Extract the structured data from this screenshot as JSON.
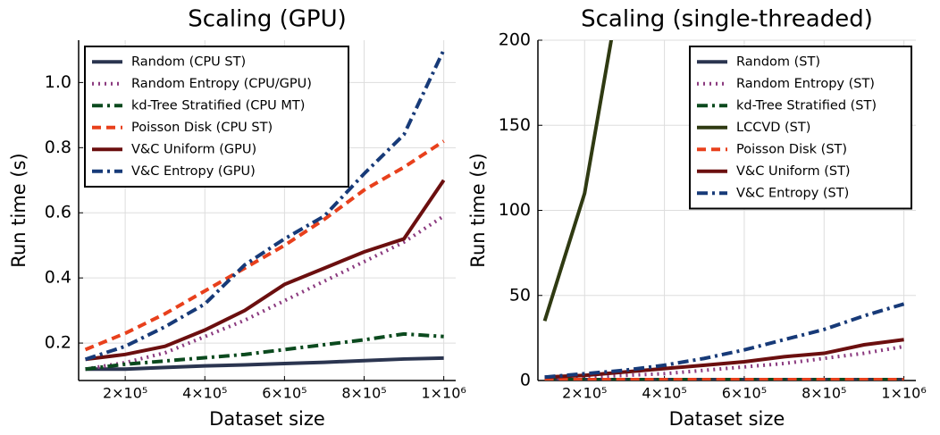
{
  "chart_data": [
    {
      "type": "line",
      "title": "Scaling (GPU)",
      "x_label": "Dataset size",
      "y_label": "Run time (s)",
      "x": [
        100000,
        200000,
        300000,
        400000,
        500000,
        600000,
        700000,
        800000,
        900000,
        1000000
      ],
      "xlim": [
        83000,
        1030000
      ],
      "xticks": [
        {
          "value": 200000,
          "label": "2×10⁵"
        },
        {
          "value": 400000,
          "label": "4×10⁵"
        },
        {
          "value": 600000,
          "label": "6×10⁵"
        },
        {
          "value": 800000,
          "label": "8×10⁵"
        },
        {
          "value": 1000000,
          "label": "1×10⁶"
        }
      ],
      "ylim": [
        0.085,
        1.13
      ],
      "yticks": [
        0.2,
        0.4,
        0.6,
        0.8,
        1.0
      ],
      "grid": true,
      "legend": "upper left",
      "series": [
        {
          "name": "Random (CPU ST)",
          "color": "#2b3550",
          "style": "solid",
          "values": [
            0.12,
            0.12,
            0.125,
            0.13,
            0.133,
            0.137,
            0.141,
            0.146,
            0.151,
            0.154
          ]
        },
        {
          "name": "Random Entropy (CPU/GPU)",
          "color": "#8b3a7f",
          "style": "dot",
          "values": [
            0.12,
            0.14,
            0.17,
            0.22,
            0.27,
            0.33,
            0.39,
            0.45,
            0.51,
            0.59
          ]
        },
        {
          "name": "kd-Tree Stratified (CPU MT)",
          "color": "#0b4a1e",
          "style": "dashdot",
          "values": [
            0.12,
            0.135,
            0.145,
            0.155,
            0.165,
            0.18,
            0.195,
            0.21,
            0.228,
            0.22
          ]
        },
        {
          "name": "Poisson Disk (CPU ST)",
          "color": "#e8401c",
          "style": "dash",
          "values": [
            0.18,
            0.23,
            0.29,
            0.36,
            0.43,
            0.5,
            0.58,
            0.67,
            0.74,
            0.82
          ]
        },
        {
          "name": "V&C Uniform (GPU)",
          "color": "#6b0f0f",
          "style": "solid",
          "values": [
            0.15,
            0.165,
            0.19,
            0.24,
            0.3,
            0.38,
            0.43,
            0.48,
            0.52,
            0.7
          ]
        },
        {
          "name": "V&C Entropy (GPU)",
          "color": "#173a78",
          "style": "dashdot",
          "values": [
            0.15,
            0.19,
            0.25,
            0.32,
            0.44,
            0.52,
            0.59,
            0.72,
            0.84,
            1.1
          ]
        }
      ]
    },
    {
      "type": "line",
      "title": "Scaling (single-threaded)",
      "x_label": "Dataset size",
      "y_label": "Run time (s)",
      "x": [
        100000,
        200000,
        300000,
        400000,
        500000,
        600000,
        700000,
        800000,
        900000,
        1000000
      ],
      "xlim": [
        83000,
        1030000
      ],
      "xticks": [
        {
          "value": 200000,
          "label": "2×10⁵"
        },
        {
          "value": 400000,
          "label": "4×10⁵"
        },
        {
          "value": 600000,
          "label": "6×10⁵"
        },
        {
          "value": 800000,
          "label": "8×10⁵"
        },
        {
          "value": 1000000,
          "label": "1×10⁶"
        }
      ],
      "ylim": [
        0,
        200
      ],
      "yticks": [
        0,
        50,
        100,
        150,
        200
      ],
      "grid": true,
      "legend": "upper right",
      "series": [
        {
          "name": "Random (ST)",
          "color": "#2b3550",
          "style": "solid",
          "values": [
            0.5,
            0.5,
            0.5,
            0.5,
            0.5,
            0.5,
            0.5,
            0.5,
            0.5,
            0.5
          ]
        },
        {
          "name": "Random Entropy (ST)",
          "color": "#8b3a7f",
          "style": "dot",
          "values": [
            1,
            2,
            3,
            4,
            6,
            8,
            10,
            13,
            16,
            20
          ]
        },
        {
          "name": "kd-Tree Stratified (ST)",
          "color": "#0b4a1e",
          "style": "dashdot",
          "values": [
            0.5,
            0.5,
            0.5,
            0.5,
            0.5,
            0.5,
            0.5,
            0.5,
            0.5,
            0.5
          ]
        },
        {
          "name": "LCCVD (ST)",
          "color": "#2f3a12",
          "style": "solid",
          "values": [
            35,
            110,
            245,
            null,
            null,
            null,
            null,
            null,
            null,
            null
          ]
        },
        {
          "name": "Poisson Disk (ST)",
          "color": "#e8401c",
          "style": "dash",
          "values": [
            0.5,
            0.5,
            0.5,
            0.5,
            0.5,
            0.5,
            0.5,
            0.5,
            0.5,
            0.5
          ]
        },
        {
          "name": "V&C Uniform (ST)",
          "color": "#6b0f0f",
          "style": "solid",
          "values": [
            2,
            3,
            5,
            7,
            9,
            11,
            14,
            16,
            21,
            24
          ]
        },
        {
          "name": "V&C Entropy (ST)",
          "color": "#173a78",
          "style": "dashdot",
          "values": [
            2,
            4,
            6,
            9,
            13,
            18,
            24,
            30,
            38,
            45
          ]
        }
      ]
    }
  ]
}
